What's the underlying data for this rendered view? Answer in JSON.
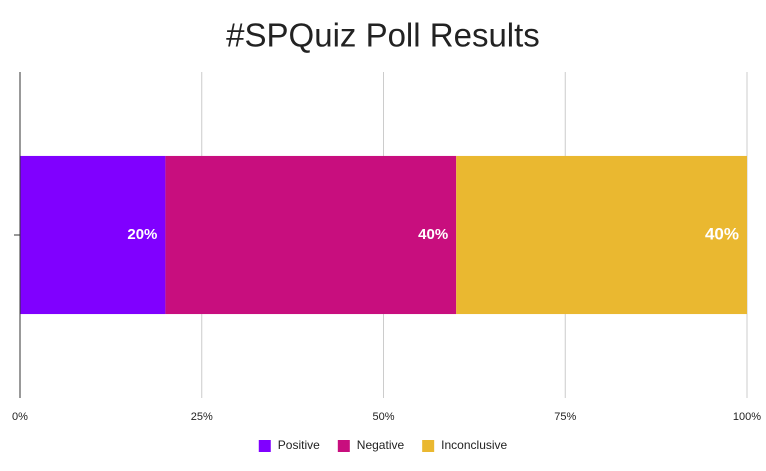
{
  "chart_data": {
    "type": "stacked-bar",
    "orientation": "horizontal",
    "title": "#SPQuiz Poll Results",
    "categories": [
      null
    ],
    "series": [
      {
        "name": "Positive",
        "color": "#8000ff",
        "values": [
          20
        ],
        "value_labels": [
          "20%"
        ]
      },
      {
        "name": "Negative",
        "color": "#c80e7e",
        "values": [
          40
        ],
        "value_labels": [
          "40%"
        ]
      },
      {
        "name": "Inconclusive",
        "color": "#eab830",
        "values": [
          40
        ],
        "value_labels": [
          "40%"
        ]
      }
    ],
    "xlim": [
      0,
      100
    ],
    "xticks": [
      {
        "value": 0,
        "label": "0%"
      },
      {
        "value": 25,
        "label": "25%"
      },
      {
        "value": 50,
        "label": "50%"
      },
      {
        "value": 75,
        "label": "75%"
      },
      {
        "value": 100,
        "label": "100%"
      }
    ],
    "grid": true,
    "legend": "bottom"
  }
}
